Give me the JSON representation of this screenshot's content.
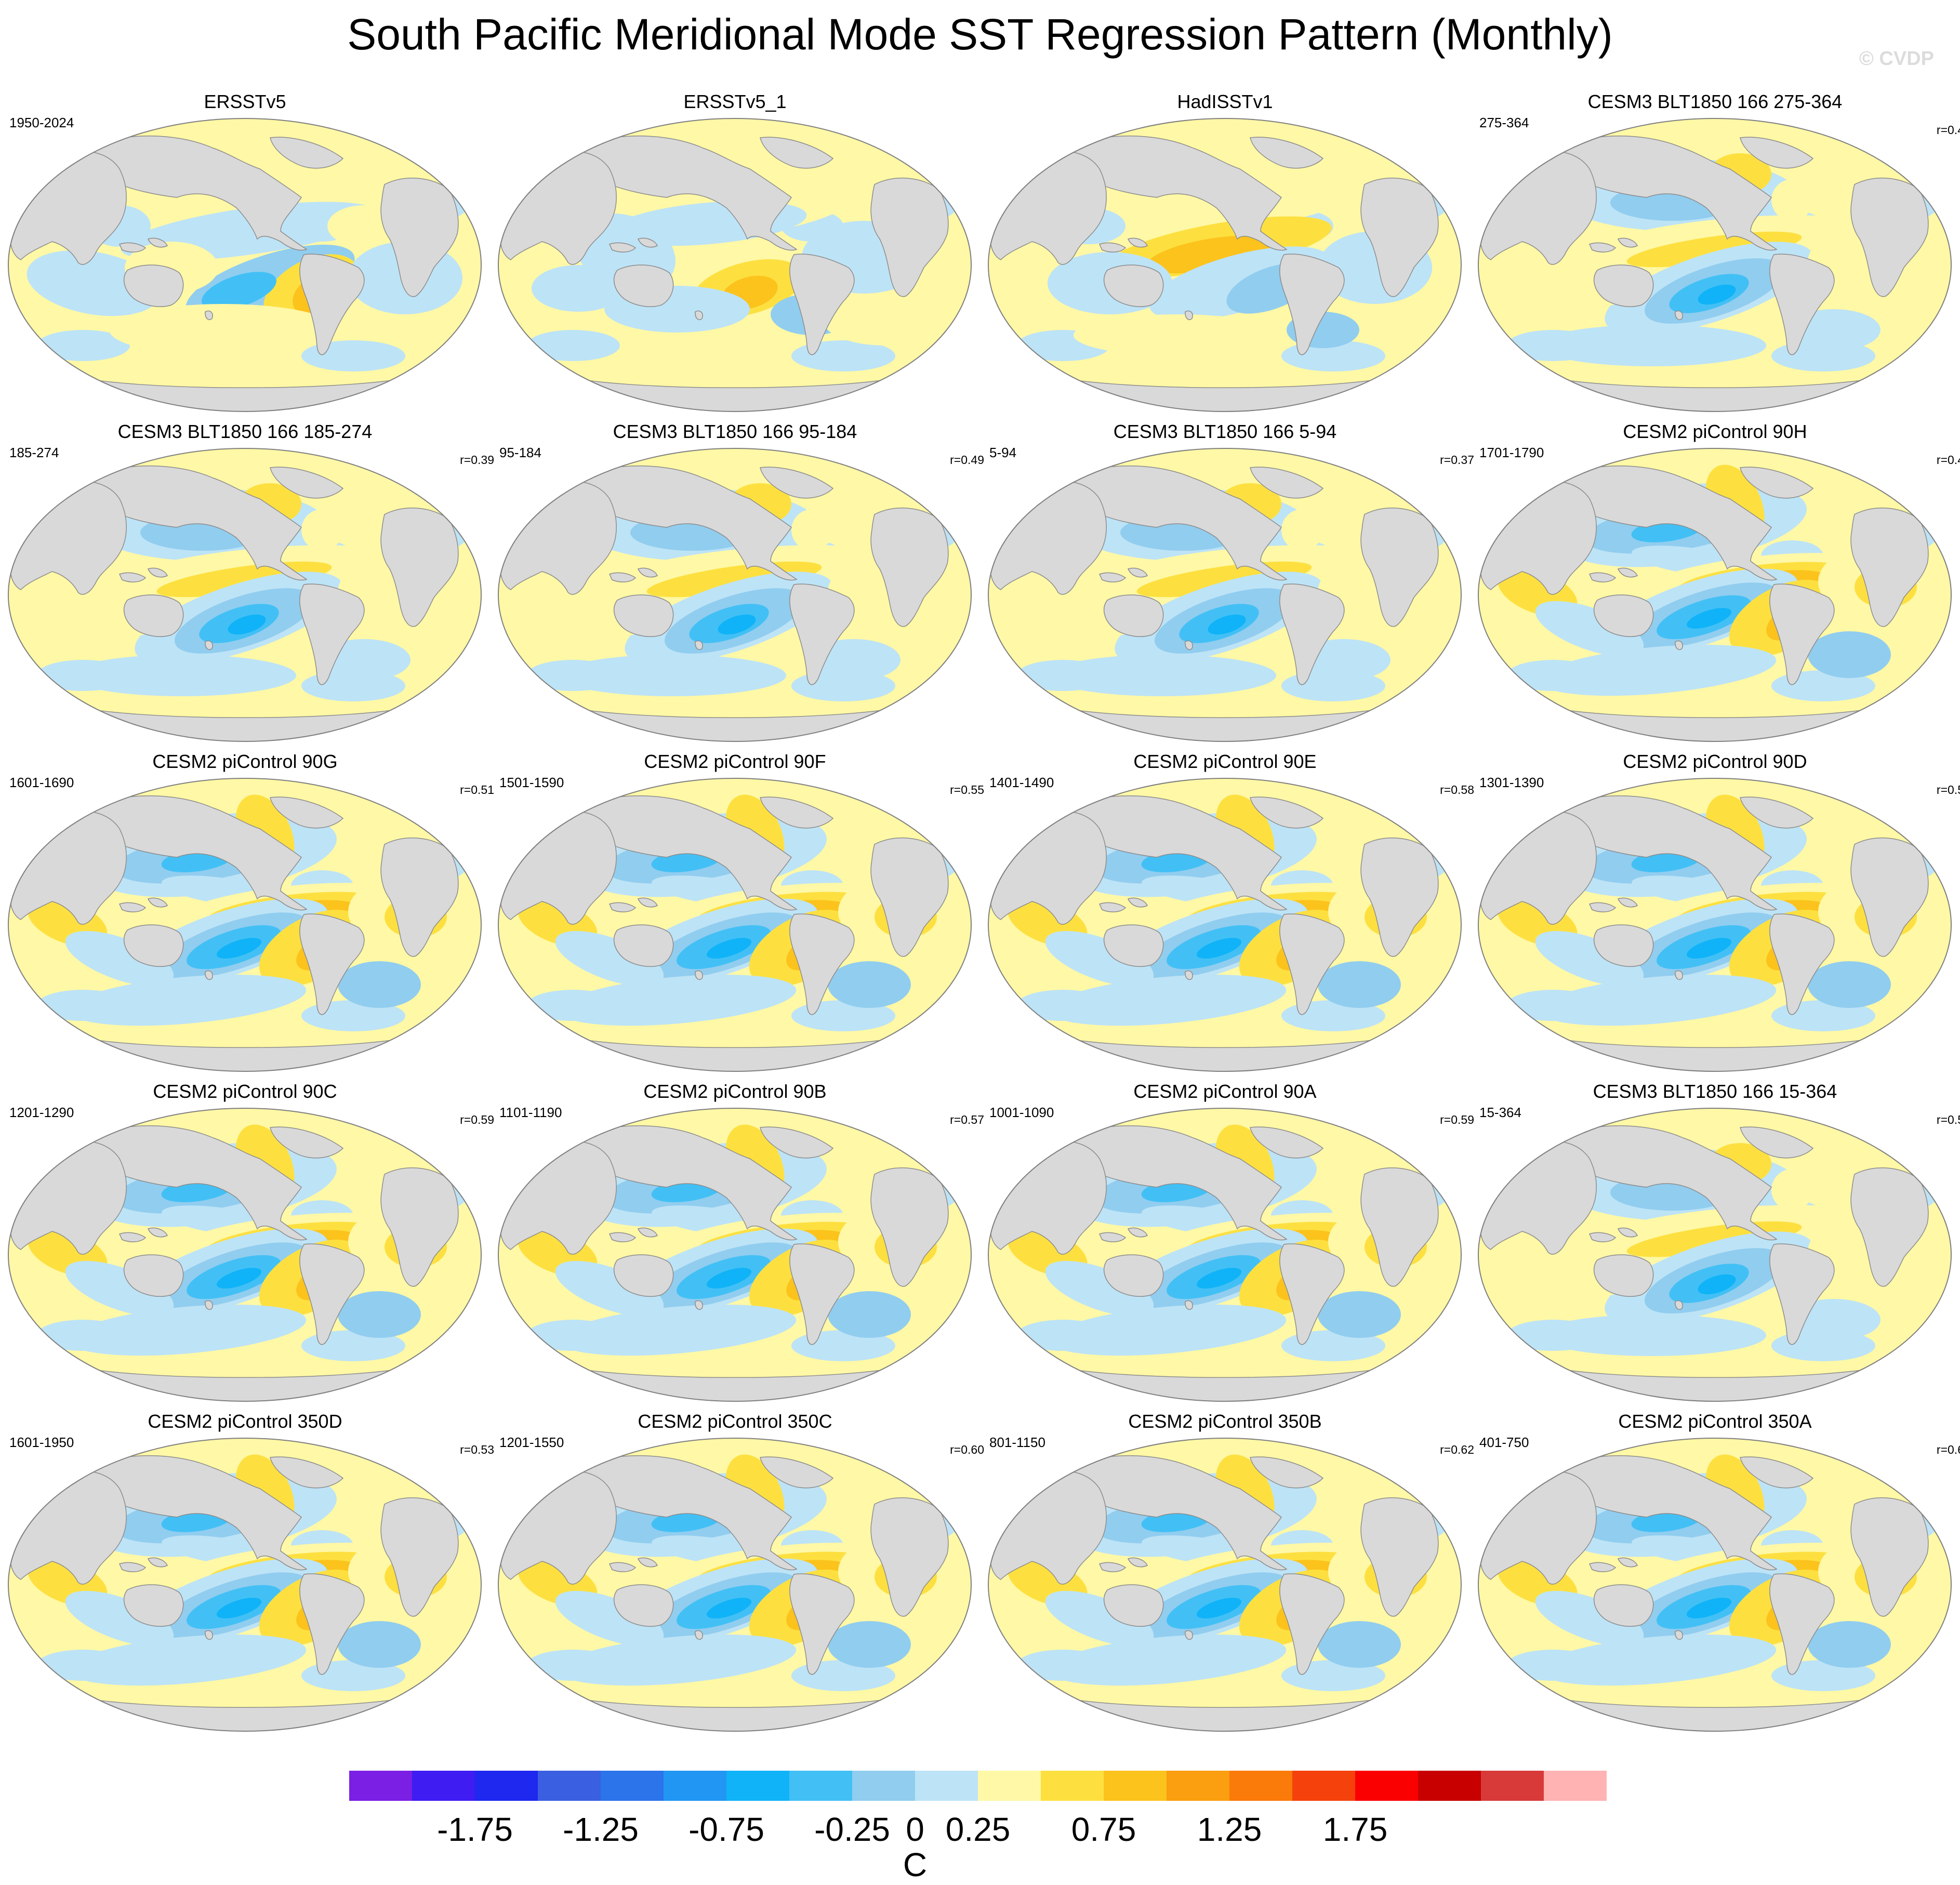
{
  "title": "South Pacific Meridional Mode SST Regression Pattern (Monthly)",
  "watermark": "© CVDP",
  "chart_data": {
    "type": "heatmap",
    "description_of_field": "SST regression map panels",
    "colors": {
      "land": "#d9d9d9",
      "land_edge": "#8c8c8c",
      "outline": "#7f7f7f"
    },
    "panels": [
      {
        "title": "ERSSTv5",
        "years": "1950-2024",
        "r": "",
        "pattern": 0
      },
      {
        "title": "ERSSTv5_1",
        "years": "",
        "r": "",
        "pattern": 1
      },
      {
        "title": "HadISSTv1",
        "years": "",
        "r": "",
        "pattern": 2
      },
      {
        "title": "CESM3 BLT1850 166 275-364",
        "years": "275-364",
        "r": "r=0.4",
        "pattern": 3
      },
      {
        "title": "CESM3 BLT1850 166 185-274",
        "years": "185-274",
        "r": "r=0.39",
        "pattern": 3
      },
      {
        "title": "CESM3 BLT1850 166 95-184",
        "years": "95-184",
        "r": "r=0.49",
        "pattern": 3
      },
      {
        "title": "CESM3 BLT1850 166 5-94",
        "years": "5-94",
        "r": "r=0.37",
        "pattern": 3
      },
      {
        "title": "CESM2 piControl 90H",
        "years": "1701-1790",
        "r": "r=0.4",
        "pattern": 4
      },
      {
        "title": "CESM2 piControl 90G",
        "years": "1601-1690",
        "r": "r=0.51",
        "pattern": 4
      },
      {
        "title": "CESM2 piControl 90F",
        "years": "1501-1590",
        "r": "r=0.55",
        "pattern": 4
      },
      {
        "title": "CESM2 piControl 90E",
        "years": "1401-1490",
        "r": "r=0.58",
        "pattern": 4
      },
      {
        "title": "CESM2 piControl 90D",
        "years": "1301-1390",
        "r": "r=0.5",
        "pattern": 4
      },
      {
        "title": "CESM2 piControl 90C",
        "years": "1201-1290",
        "r": "r=0.59",
        "pattern": 4
      },
      {
        "title": "CESM2 piControl 90B",
        "years": "1101-1190",
        "r": "r=0.57",
        "pattern": 4
      },
      {
        "title": "CESM2 piControl 90A",
        "years": "1001-1090",
        "r": "r=0.59",
        "pattern": 4
      },
      {
        "title": "CESM3 BLT1850 166 15-364",
        "years": "15-364",
        "r": "r=0.5",
        "pattern": 3
      },
      {
        "title": "CESM2 piControl 350D",
        "years": "1601-1950",
        "r": "r=0.53",
        "pattern": 4
      },
      {
        "title": "CESM2 piControl 350C",
        "years": "1201-1550",
        "r": "r=0.60",
        "pattern": 4
      },
      {
        "title": "CESM2 piControl 350B",
        "years": "801-1150",
        "r": "r=0.62",
        "pattern": 4
      },
      {
        "title": "CESM2 piControl 350A",
        "years": "401-750",
        "r": "r=0.6",
        "pattern": 4
      }
    ],
    "colorbar": {
      "unit": "C",
      "levels": [
        -2.0,
        -1.75,
        -1.5,
        -1.25,
        -1.0,
        -0.75,
        -0.5,
        -0.25,
        0,
        0.25,
        0.5,
        0.75,
        1.0,
        1.25,
        1.5,
        1.75,
        2.0
      ],
      "tick_labels": [
        "-1.75",
        "-1.25",
        "-0.75",
        "-0.25",
        "0",
        "0.25",
        "0.75",
        "1.25",
        "1.75"
      ],
      "tick_values": [
        -1.75,
        -1.25,
        -0.75,
        -0.25,
        0,
        0.25,
        0.75,
        1.25,
        1.75
      ],
      "colors": [
        "#7a1fe3",
        "#3f1cf2",
        "#1e28ee",
        "#3a5fe0",
        "#2b74ea",
        "#2196f3",
        "#10b3f7",
        "#42c0f5",
        "#91cdef",
        "#bde3f6",
        "#fff8a6",
        "#fde040",
        "#fcc31d",
        "#fb9e0f",
        "#fa7a0a",
        "#f5420c",
        "#fa0000",
        "#c80000",
        "#d83a3a",
        "#ffb3b3"
      ]
    }
  }
}
